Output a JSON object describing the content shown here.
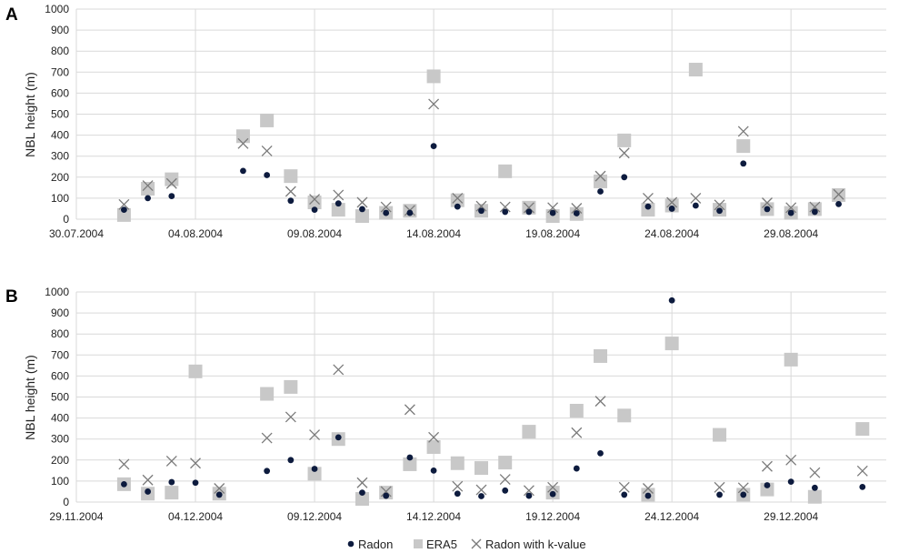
{
  "colors": {
    "radon": "#0d1b3e",
    "era5": "#c8c8c8",
    "radon_k": "#7a7a7a",
    "grid": "#d9d9d9"
  },
  "legend": {
    "items": [
      "Radon",
      "ERA5",
      "Radon with k-value"
    ],
    "placement": "bottom-center"
  },
  "chart_data": [
    {
      "panel": "A",
      "type": "scatter",
      "ylabel": "NBL height  (m)",
      "ylim": [
        0,
        1000
      ],
      "yticks": [
        "0",
        "100",
        "200",
        "300",
        "400",
        "500",
        "600",
        "700",
        "800",
        "900",
        "1000"
      ],
      "xlim": [
        "30.07.2004",
        "02.09.2004"
      ],
      "xticks": [
        "30.07.2004",
        "04.08.2004",
        "09.08.2004",
        "14.08.2004",
        "19.08.2004",
        "24.08.2004",
        "29.08.2004"
      ],
      "grid": true,
      "series": [
        {
          "name": "Radon",
          "marker": "circle",
          "points": [
            [
              "01.08.2004",
              45
            ],
            [
              "02.08.2004",
              100
            ],
            [
              "03.08.2004",
              110
            ],
            [
              "06.08.2004",
              230
            ],
            [
              "07.08.2004",
              210
            ],
            [
              "08.08.2004",
              88
            ],
            [
              "09.08.2004",
              45
            ],
            [
              "10.08.2004",
              75
            ],
            [
              "11.08.2004",
              48
            ],
            [
              "12.08.2004",
              30
            ],
            [
              "13.08.2004",
              30
            ],
            [
              "14.08.2004",
              348
            ],
            [
              "15.08.2004",
              60
            ],
            [
              "16.08.2004",
              40
            ],
            [
              "17.08.2004",
              35
            ],
            [
              "18.08.2004",
              35
            ],
            [
              "19.08.2004",
              30
            ],
            [
              "20.08.2004",
              28
            ],
            [
              "21.08.2004",
              132
            ],
            [
              "22.08.2004",
              200
            ],
            [
              "23.08.2004",
              60
            ],
            [
              "24.08.2004",
              50
            ],
            [
              "25.08.2004",
              65
            ],
            [
              "26.08.2004",
              40
            ],
            [
              "27.08.2004",
              265
            ],
            [
              "28.08.2004",
              48
            ],
            [
              "29.08.2004",
              30
            ],
            [
              "30.08.2004",
              35
            ],
            [
              "31.08.2004",
              72
            ]
          ]
        },
        {
          "name": "ERA5",
          "marker": "square",
          "points": [
            [
              "01.08.2004",
              20
            ],
            [
              "02.08.2004",
              145
            ],
            [
              "03.08.2004",
              190
            ],
            [
              "06.08.2004",
              395
            ],
            [
              "07.08.2004",
              470
            ],
            [
              "08.08.2004",
              205
            ],
            [
              "09.08.2004",
              80
            ],
            [
              "10.08.2004",
              45
            ],
            [
              "11.08.2004",
              15
            ],
            [
              "12.08.2004",
              30
            ],
            [
              "13.08.2004",
              40
            ],
            [
              "14.08.2004",
              680
            ],
            [
              "15.08.2004",
              90
            ],
            [
              "16.08.2004",
              40
            ],
            [
              "17.08.2004",
              228
            ],
            [
              "18.08.2004",
              55
            ],
            [
              "19.08.2004",
              15
            ],
            [
              "20.08.2004",
              25
            ],
            [
              "21.08.2004",
              180
            ],
            [
              "22.08.2004",
              375
            ],
            [
              "23.08.2004",
              45
            ],
            [
              "24.08.2004",
              65
            ],
            [
              "25.08.2004",
              712
            ],
            [
              "26.08.2004",
              45
            ],
            [
              "27.08.2004",
              348
            ],
            [
              "28.08.2004",
              48
            ],
            [
              "29.08.2004",
              30
            ],
            [
              "30.08.2004",
              48
            ],
            [
              "31.08.2004",
              115
            ]
          ]
        },
        {
          "name": "Radon with k-value",
          "marker": "x",
          "points": [
            [
              "01.08.2004",
              70
            ],
            [
              "02.08.2004",
              160
            ],
            [
              "03.08.2004",
              170
            ],
            [
              "06.08.2004",
              360
            ],
            [
              "07.08.2004",
              325
            ],
            [
              "08.08.2004",
              132
            ],
            [
              "09.08.2004",
              95
            ],
            [
              "10.08.2004",
              115
            ],
            [
              "11.08.2004",
              80
            ],
            [
              "12.08.2004",
              58
            ],
            [
              "13.08.2004",
              42
            ],
            [
              "14.08.2004",
              548
            ],
            [
              "15.08.2004",
              100
            ],
            [
              "16.08.2004",
              62
            ],
            [
              "17.08.2004",
              58
            ],
            [
              "18.08.2004",
              55
            ],
            [
              "19.08.2004",
              55
            ],
            [
              "20.08.2004",
              52
            ],
            [
              "21.08.2004",
              205
            ],
            [
              "22.08.2004",
              315
            ],
            [
              "23.08.2004",
              100
            ],
            [
              "24.08.2004",
              80
            ],
            [
              "25.08.2004",
              100
            ],
            [
              "26.08.2004",
              68
            ],
            [
              "27.08.2004",
              418
            ],
            [
              "28.08.2004",
              78
            ],
            [
              "29.08.2004",
              55
            ],
            [
              "30.08.2004",
              58
            ],
            [
              "31.08.2004",
              118
            ]
          ]
        }
      ]
    },
    {
      "panel": "B",
      "type": "scatter",
      "ylabel": "NBL height  (m)",
      "ylim": [
        0,
        1000
      ],
      "yticks": [
        "0",
        "100",
        "200",
        "300",
        "400",
        "500",
        "600",
        "700",
        "800",
        "900",
        "1000"
      ],
      "xlim": [
        "29.11.2004",
        "02.01.2005"
      ],
      "xticks": [
        "29.11.2004",
        "04.12.2004",
        "09.12.2004",
        "14.12.2004",
        "19.12.2004",
        "24.12.2004",
        "29.12.2004"
      ],
      "grid": true,
      "series": [
        {
          "name": "Radon",
          "marker": "circle",
          "points": [
            [
              "01.12.2004",
              85
            ],
            [
              "02.12.2004",
              50
            ],
            [
              "03.12.2004",
              95
            ],
            [
              "04.12.2004",
              92
            ],
            [
              "05.12.2004",
              35
            ],
            [
              "07.12.2004",
              148
            ],
            [
              "08.12.2004",
              200
            ],
            [
              "09.12.2004",
              158
            ],
            [
              "10.12.2004",
              308
            ],
            [
              "11.12.2004",
              45
            ],
            [
              "12.12.2004",
              30
            ],
            [
              "13.12.2004",
              212
            ],
            [
              "14.12.2004",
              150
            ],
            [
              "15.12.2004",
              40
            ],
            [
              "16.12.2004",
              28
            ],
            [
              "17.12.2004",
              55
            ],
            [
              "18.12.2004",
              30
            ],
            [
              "19.12.2004",
              38
            ],
            [
              "20.12.2004",
              160
            ],
            [
              "21.12.2004",
              232
            ],
            [
              "22.12.2004",
              35
            ],
            [
              "23.12.2004",
              30
            ],
            [
              "24.12.2004",
              960
            ],
            [
              "26.12.2004",
              35
            ],
            [
              "27.12.2004",
              35
            ],
            [
              "28.12.2004",
              80
            ],
            [
              "29.12.2004",
              97
            ],
            [
              "30.12.2004",
              68
            ],
            [
              "01.01.2005",
              72
            ]
          ]
        },
        {
          "name": "ERA5",
          "marker": "square",
          "points": [
            [
              "01.12.2004",
              85
            ],
            [
              "02.12.2004",
              40
            ],
            [
              "03.12.2004",
              45
            ],
            [
              "04.12.2004",
              622
            ],
            [
              "05.12.2004",
              40
            ],
            [
              "07.12.2004",
              515
            ],
            [
              "08.12.2004",
              548
            ],
            [
              "09.12.2004",
              135
            ],
            [
              "10.12.2004",
              300
            ],
            [
              "11.12.2004",
              15
            ],
            [
              "12.12.2004",
              45
            ],
            [
              "13.12.2004",
              180
            ],
            [
              "14.12.2004",
              262
            ],
            [
              "15.12.2004",
              185
            ],
            [
              "16.12.2004",
              162
            ],
            [
              "17.12.2004",
              188
            ],
            [
              "18.12.2004",
              335
            ],
            [
              "19.12.2004",
              45
            ],
            [
              "20.12.2004",
              435
            ],
            [
              "21.12.2004",
              695
            ],
            [
              "22.12.2004",
              412
            ],
            [
              "23.12.2004",
              35
            ],
            [
              "24.12.2004",
              755
            ],
            [
              "26.12.2004",
              320
            ],
            [
              "27.12.2004",
              35
            ],
            [
              "28.12.2004",
              60
            ],
            [
              "29.12.2004",
              678
            ],
            [
              "30.12.2004",
              25
            ],
            [
              "01.01.2005",
              348
            ]
          ]
        },
        {
          "name": "Radon with k-value",
          "marker": "x",
          "points": [
            [
              "01.12.2004",
              180
            ],
            [
              "02.12.2004",
              105
            ],
            [
              "03.12.2004",
              195
            ],
            [
              "04.12.2004",
              185
            ],
            [
              "05.12.2004",
              65
            ],
            [
              "07.12.2004",
              305
            ],
            [
              "08.12.2004",
              405
            ],
            [
              "09.12.2004",
              320
            ],
            [
              "10.12.2004",
              630
            ],
            [
              "11.12.2004",
              92
            ],
            [
              "12.12.2004",
              50
            ],
            [
              "13.12.2004",
              440
            ],
            [
              "14.12.2004",
              308
            ],
            [
              "15.12.2004",
              75
            ],
            [
              "16.12.2004",
              58
            ],
            [
              "17.12.2004",
              108
            ],
            [
              "18.12.2004",
              55
            ],
            [
              "19.12.2004",
              70
            ],
            [
              "20.12.2004",
              330
            ],
            [
              "21.12.2004",
              480
            ],
            [
              "22.12.2004",
              70
            ],
            [
              "23.12.2004",
              65
            ],
            [
              "26.12.2004",
              70
            ],
            [
              "27.12.2004",
              68
            ],
            [
              "28.12.2004",
              170
            ],
            [
              "29.12.2004",
              200
            ],
            [
              "30.12.2004",
              140
            ],
            [
              "01.01.2005",
              148
            ]
          ]
        }
      ]
    }
  ]
}
